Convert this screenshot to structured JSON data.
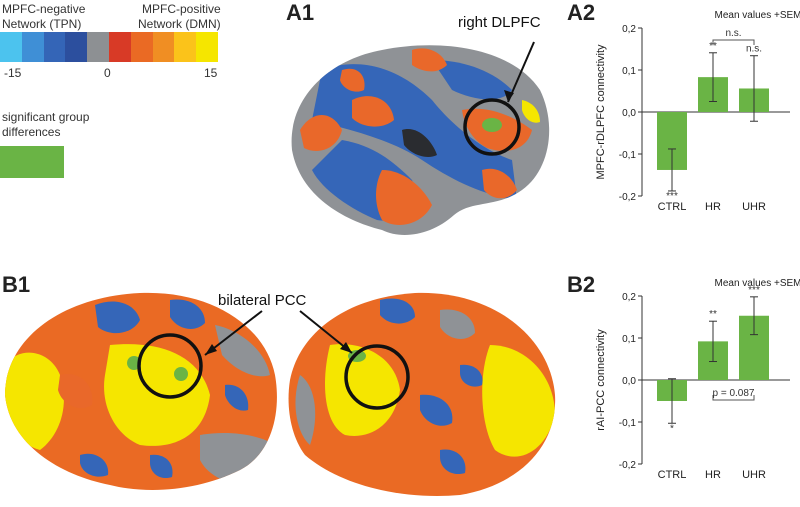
{
  "legend": {
    "neg_title": [
      "MPFC-negative",
      "Network (TPN)"
    ],
    "pos_title": [
      "MPFC-positive",
      "Network (DMN)"
    ],
    "tick_min": "-15",
    "tick_zero": "0",
    "tick_max": "15",
    "colors": [
      "#4cc3ee",
      "#3f8fd6",
      "#3465b7",
      "#2c4f9e",
      "#8d9093",
      "#d83a26",
      "#ea6a24",
      "#f08e23",
      "#fbc31a",
      "#f5e600"
    ],
    "sig_title": [
      "significant group",
      "differences"
    ],
    "sig_color": "#6ab445"
  },
  "panels": {
    "a1": "A1",
    "a2": "A2",
    "b1": "B1",
    "b2": "B2"
  },
  "callouts": {
    "a1_region": "right DLPFC",
    "b1_region": "bilateral PCC"
  },
  "chart_data": [
    {
      "id": "a2",
      "type": "bar",
      "legend_note": "Mean values +SEM",
      "ylabel": "MPFC-rDLPFC connectivity",
      "categories": [
        "CTRL",
        "HR",
        "UHR"
      ],
      "values": [
        -0.138,
        0.083,
        0.056
      ],
      "sem": [
        0.05,
        0.058,
        0.078
      ],
      "sig": [
        "***",
        "**",
        "n.s."
      ],
      "bracket": {
        "from": 1,
        "to": 2,
        "label": "n.s."
      },
      "ylim": [
        -0.2,
        0.2
      ],
      "ticks": [
        "-0,2",
        "-0,1",
        "0,0",
        "0,1",
        "0,2"
      ],
      "bar_color": "#6ab445"
    },
    {
      "id": "b2",
      "type": "bar",
      "legend_note": "Mean values +SEM",
      "ylabel": "rAI-PCC connectivity",
      "categories": [
        "CTRL",
        "HR",
        "UHR"
      ],
      "values": [
        -0.05,
        0.092,
        0.153
      ],
      "sem": [
        0.053,
        0.048,
        0.045
      ],
      "sig": [
        "*",
        "**",
        "***"
      ],
      "bracket": {
        "from": 1,
        "to": 2,
        "label": "p = 0.087"
      },
      "ylim": [
        -0.2,
        0.2
      ],
      "ticks": [
        "-0,2",
        "-0,1",
        "0,0",
        "0,1",
        "0,2"
      ],
      "bar_color": "#6ab445"
    }
  ]
}
